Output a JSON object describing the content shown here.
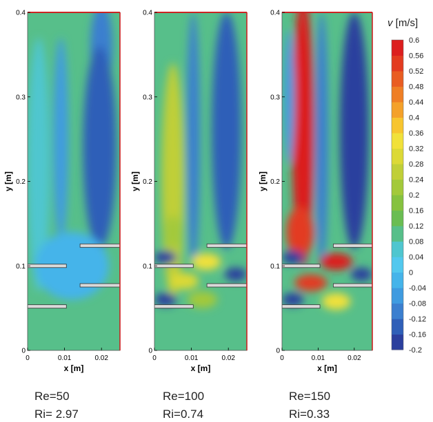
{
  "chart_data": {
    "type": "heatmap",
    "colorbar": {
      "title_var": "v",
      "title_unit": "[m/s]",
      "ticks": [
        "0.6",
        "0.56",
        "0.52",
        "0.48",
        "0.44",
        "0.4",
        "0.36",
        "0.32",
        "0.28",
        "0.24",
        "0.2",
        "0.16",
        "0.12",
        "0.08",
        "0.04",
        "0",
        "-0.04",
        "-0.08",
        "-0.12",
        "-0.16",
        "-0.2"
      ],
      "range": [
        -0.2,
        0.6
      ],
      "colors": [
        "#2b3f9e",
        "#2f5fb8",
        "#3b7fcf",
        "#3f9be0",
        "#45b4ea",
        "#52c8ee",
        "#4fc6cf",
        "#57bf8a",
        "#6abd52",
        "#86c23f",
        "#a3c93a",
        "#c0cf38",
        "#dcd936",
        "#f1e13a",
        "#f7c52f",
        "#f4a12a",
        "#ef7f25",
        "#e95d22",
        "#e33b20",
        "#dc1f1f"
      ]
    },
    "panels": [
      {
        "caption_re": "Re=50",
        "caption_ri": "Ri= 2.97",
        "xlabel": "x [m]",
        "ylabel": "y [m]",
        "xticks": [
          "0",
          "0.01",
          "0.02"
        ],
        "yticks": [
          "0",
          "0.1",
          "0.2",
          "0.3",
          "0.4"
        ],
        "xlim": [
          0,
          0.025
        ],
        "ylim": [
          0,
          0.4
        ],
        "background_velocity": 0.12,
        "features": [
          {
            "x": 0.02,
            "y": 0.36,
            "sx": 0.003,
            "sy": 0.05,
            "v": -0.11
          },
          {
            "x": 0.0195,
            "y": 0.24,
            "sx": 0.0045,
            "sy": 0.12,
            "v": -0.13
          },
          {
            "x": 0.009,
            "y": 0.25,
            "sx": 0.002,
            "sy": 0.12,
            "v": -0.04
          },
          {
            "x": 0.003,
            "y": 0.22,
            "sx": 0.003,
            "sy": 0.15,
            "v": 0.04
          },
          {
            "x": 0.012,
            "y": 0.1,
            "sx": 0.01,
            "sy": 0.04,
            "v": -0.03
          }
        ]
      },
      {
        "caption_re": "Re=100",
        "caption_ri": "Ri=0.74",
        "xlabel": "x [m]",
        "ylabel": "y [m]",
        "xticks": [
          "0",
          "0.01",
          "0.02"
        ],
        "yticks": [
          "0",
          "0.1",
          "0.2",
          "0.3",
          "0.4"
        ],
        "xlim": [
          0,
          0.025
        ],
        "ylim": [
          0,
          0.4
        ],
        "background_velocity": 0.12,
        "features": [
          {
            "x": 0.005,
            "y": 0.2,
            "sx": 0.003,
            "sy": 0.14,
            "v": 0.26
          },
          {
            "x": 0.005,
            "y": 0.14,
            "sx": 0.0022,
            "sy": 0.02,
            "v": 0.24
          },
          {
            "x": 0.0105,
            "y": 0.25,
            "sx": 0.0018,
            "sy": 0.15,
            "v": -0.12
          },
          {
            "x": 0.0195,
            "y": 0.26,
            "sx": 0.004,
            "sy": 0.14,
            "v": -0.14
          },
          {
            "x": 0.014,
            "y": 0.105,
            "sx": 0.004,
            "sy": 0.01,
            "v": 0.32
          },
          {
            "x": 0.008,
            "y": 0.082,
            "sx": 0.004,
            "sy": 0.01,
            "v": 0.28
          },
          {
            "x": 0.013,
            "y": 0.06,
            "sx": 0.004,
            "sy": 0.01,
            "v": 0.22
          },
          {
            "x": 0.003,
            "y": 0.11,
            "sx": 0.003,
            "sy": 0.008,
            "v": -0.26
          },
          {
            "x": 0.022,
            "y": 0.09,
            "sx": 0.003,
            "sy": 0.008,
            "v": -0.22
          },
          {
            "x": 0.003,
            "y": 0.06,
            "sx": 0.003,
            "sy": 0.008,
            "v": -0.2
          }
        ]
      },
      {
        "caption_re": "Re=150",
        "caption_ri": "Ri=0.33",
        "xlabel": "x [m]",
        "ylabel": "y [m]",
        "xticks": [
          "0",
          "0.01",
          "0.02"
        ],
        "yticks": [
          "0",
          "0.1",
          "0.2",
          "0.3",
          "0.4"
        ],
        "xlim": [
          0,
          0.025
        ],
        "ylim": [
          0,
          0.4
        ],
        "background_velocity": 0.12,
        "features": [
          {
            "x": 0.0058,
            "y": 0.26,
            "sx": 0.003,
            "sy": 0.16,
            "v": 0.62
          },
          {
            "x": 0.005,
            "y": 0.14,
            "sx": 0.0038,
            "sy": 0.03,
            "v": 0.55
          },
          {
            "x": 0.011,
            "y": 0.25,
            "sx": 0.0018,
            "sy": 0.15,
            "v": -0.1
          },
          {
            "x": 0.02,
            "y": 0.26,
            "sx": 0.004,
            "sy": 0.14,
            "v": -0.22
          },
          {
            "x": 0.002,
            "y": 0.3,
            "sx": 0.0015,
            "sy": 0.08,
            "v": -0.06
          },
          {
            "x": 0.015,
            "y": 0.105,
            "sx": 0.0045,
            "sy": 0.01,
            "v": 0.58
          },
          {
            "x": 0.008,
            "y": 0.08,
            "sx": 0.0045,
            "sy": 0.01,
            "v": 0.52
          },
          {
            "x": 0.015,
            "y": 0.058,
            "sx": 0.004,
            "sy": 0.01,
            "v": 0.34
          },
          {
            "x": 0.003,
            "y": 0.11,
            "sx": 0.003,
            "sy": 0.008,
            "v": -0.3
          },
          {
            "x": 0.022,
            "y": 0.09,
            "sx": 0.003,
            "sy": 0.008,
            "v": -0.28
          },
          {
            "x": 0.003,
            "y": 0.06,
            "sx": 0.003,
            "sy": 0.008,
            "v": -0.24
          }
        ]
      }
    ],
    "plates": [
      {
        "x0": 0.0,
        "x1": 0.0105,
        "y": 0.052
      },
      {
        "x0": 0.0,
        "x1": 0.0105,
        "y": 0.1
      },
      {
        "x0": 0.0142,
        "x1": 0.025,
        "y": 0.077
      },
      {
        "x0": 0.0142,
        "x1": 0.025,
        "y": 0.124
      }
    ]
  }
}
